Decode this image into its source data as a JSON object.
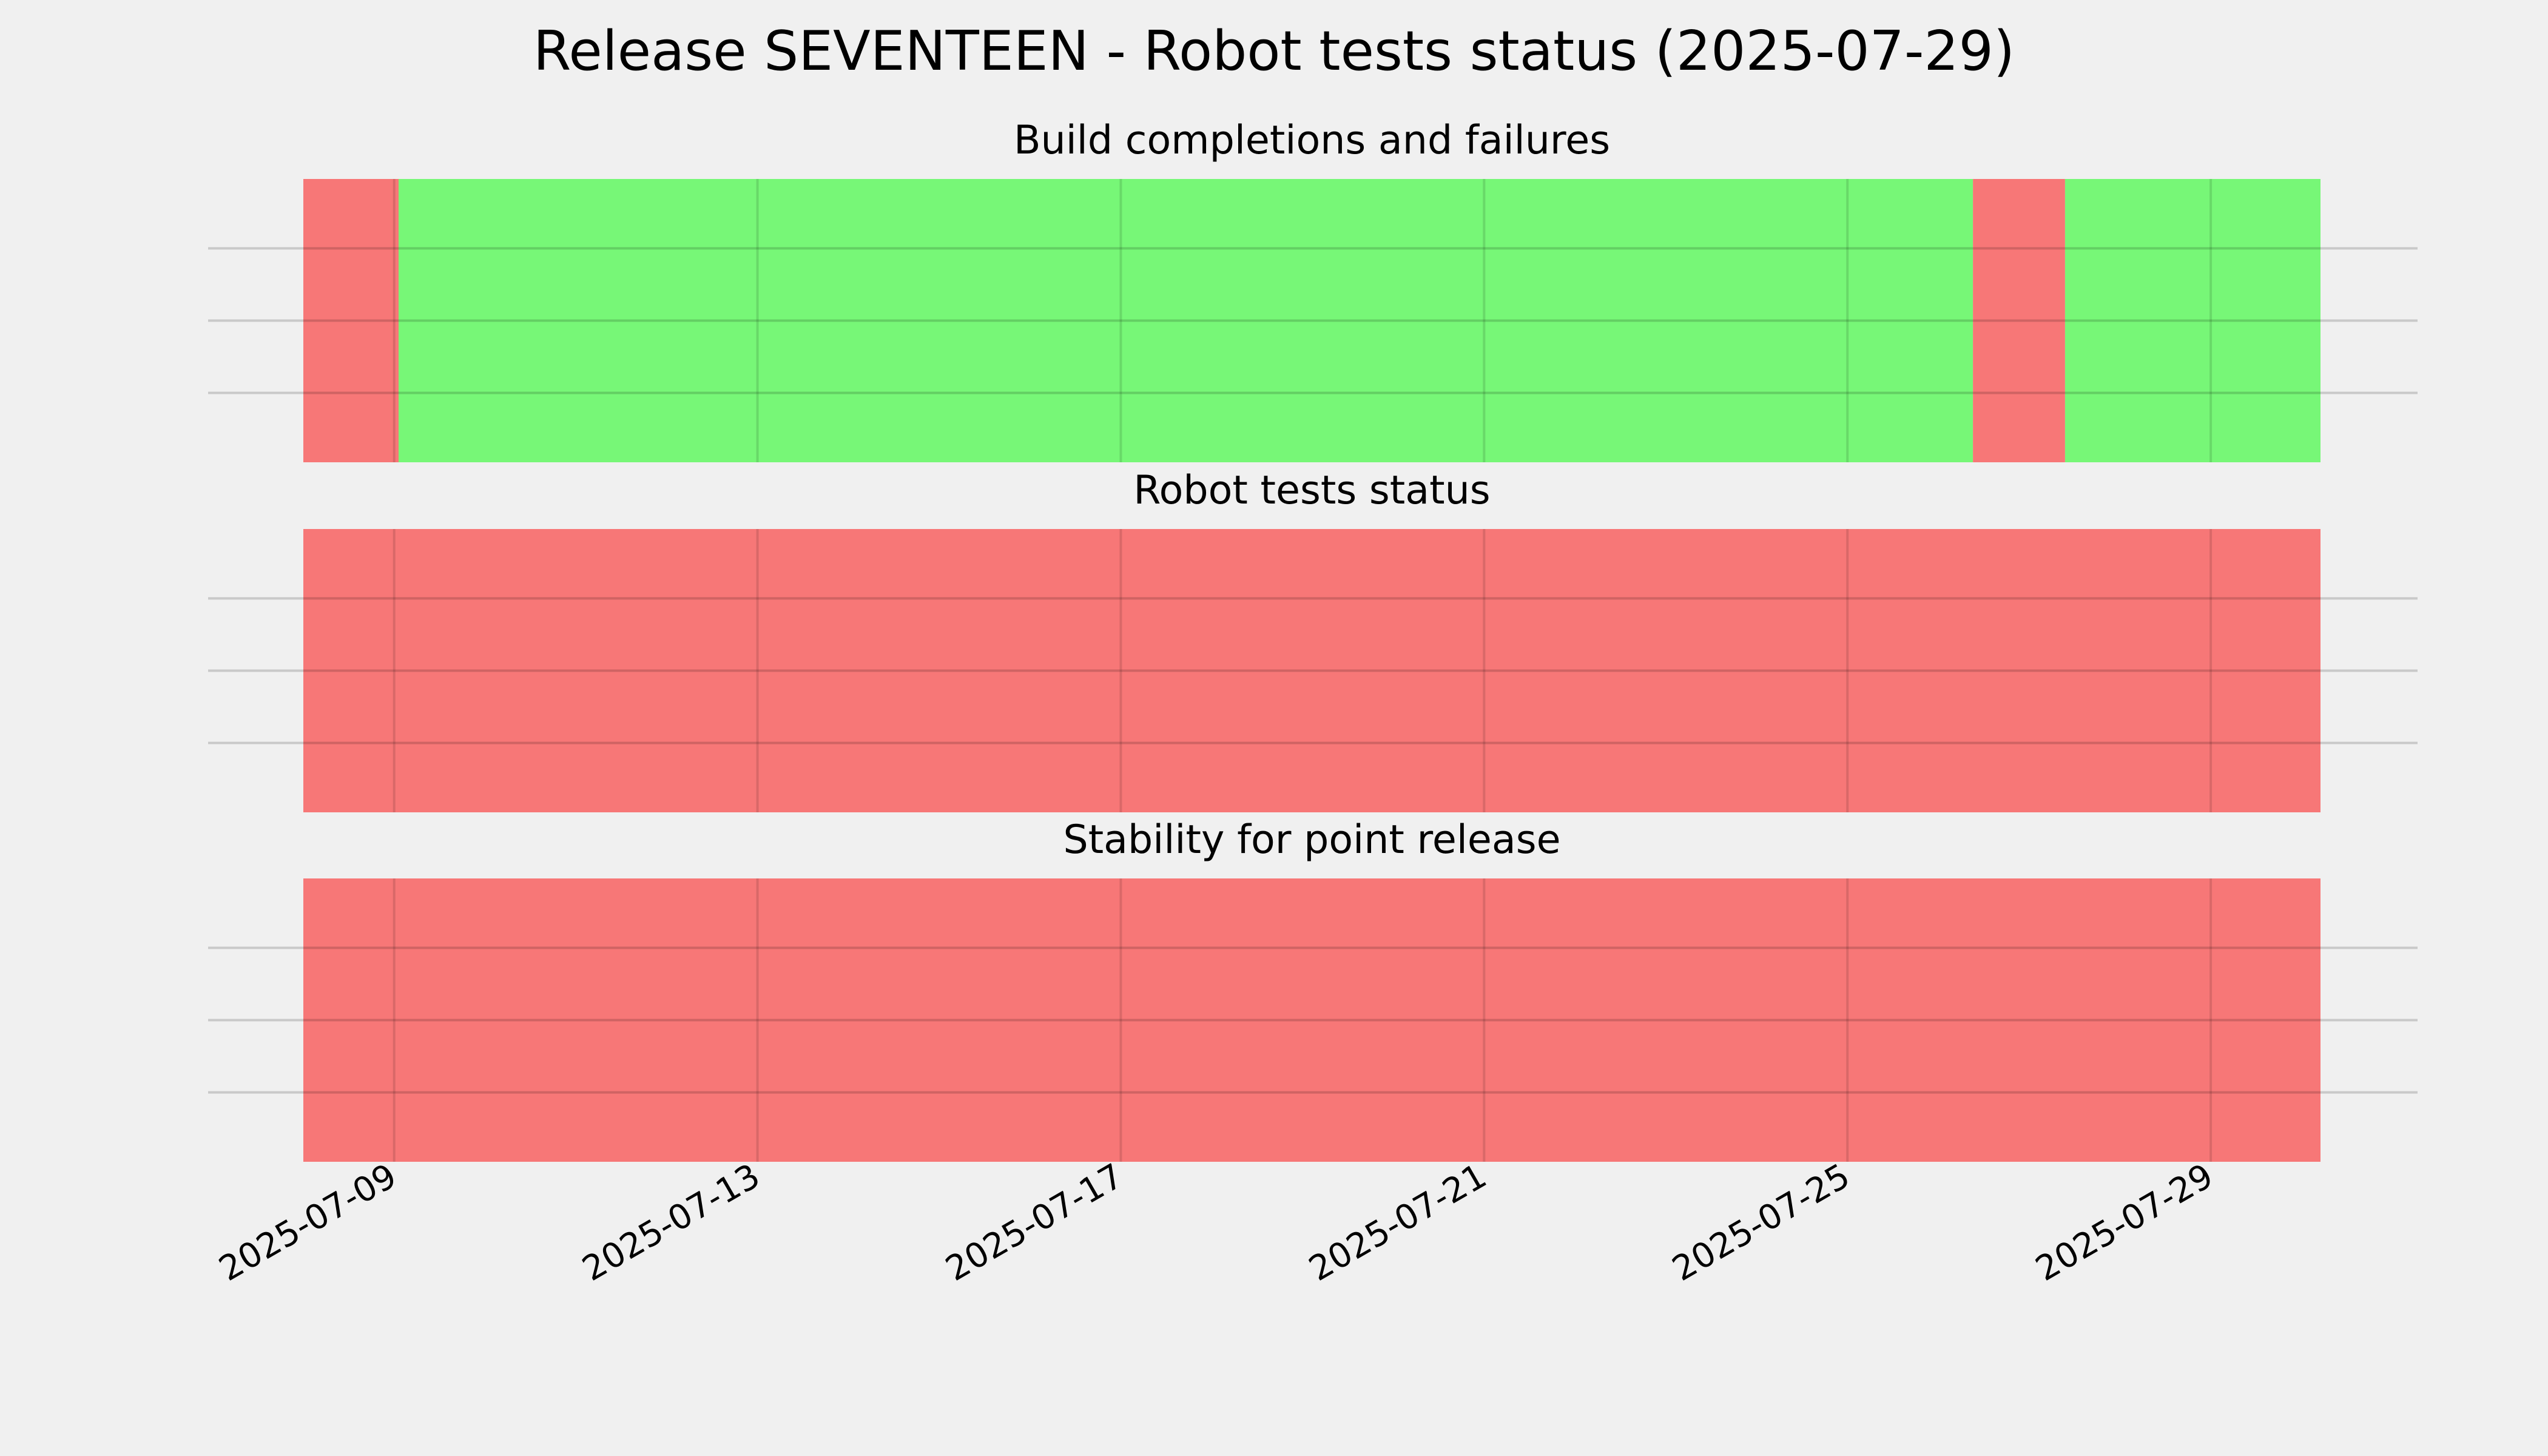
{
  "chart_data": {
    "type": "timeline",
    "title": "Release SEVENTEEN - Robot tests status (2025-07-29)",
    "x_range": [
      "2025-07-08T00:00",
      "2025-07-30T05:00"
    ],
    "x_ticks": [
      "2025-07-09",
      "2025-07-13",
      "2025-07-17",
      "2025-07-21",
      "2025-07-25",
      "2025-07-29"
    ],
    "colors": {
      "pass": "#77f777",
      "fail": "#f77777"
    },
    "grid": true,
    "panels": [
      {
        "title": "Build completions and failures",
        "segments": [
          {
            "start": "2025-07-08T00:00",
            "end": "2025-07-09T01:10",
            "status": "fail"
          },
          {
            "start": "2025-07-09T01:10",
            "end": "2025-07-26T09:10",
            "status": "pass"
          },
          {
            "start": "2025-07-26T09:10",
            "end": "2025-07-27T09:30",
            "status": "fail"
          },
          {
            "start": "2025-07-27T09:30",
            "end": "2025-07-30T05:00",
            "status": "pass"
          }
        ]
      },
      {
        "title": "Robot tests status",
        "segments": [
          {
            "start": "2025-07-08T00:00",
            "end": "2025-07-30T05:00",
            "status": "fail"
          }
        ]
      },
      {
        "title": "Stability for point release",
        "segments": [
          {
            "start": "2025-07-08T00:00",
            "end": "2025-07-30T05:00",
            "status": "fail"
          }
        ]
      }
    ]
  }
}
